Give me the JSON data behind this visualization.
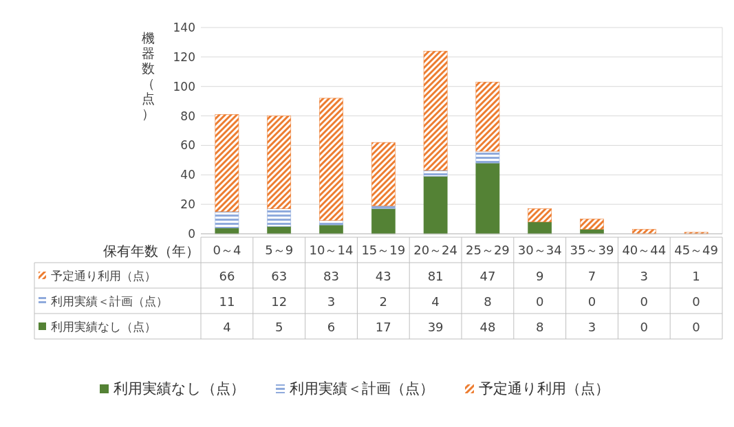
{
  "chart_data": {
    "type": "bar",
    "stacked": true,
    "ylabel": "機器数（点）",
    "xlabel": "保有年数（年）",
    "categories": [
      "0～4",
      "5～9",
      "10～14",
      "15～19",
      "20～24",
      "25～29",
      "30～34",
      "35～39",
      "40～44",
      "45～49"
    ],
    "series": [
      {
        "name": "利用実績なし（点）",
        "color": "#548235",
        "values": [
          4,
          5,
          6,
          17,
          39,
          48,
          8,
          3,
          0,
          0
        ]
      },
      {
        "name": "利用実績＜計画（点）",
        "color": "#8faadc",
        "values": [
          11,
          12,
          3,
          2,
          4,
          8,
          0,
          0,
          0,
          0
        ]
      },
      {
        "name": "予定通り利用（点）",
        "color": "#ed7d31",
        "values": [
          66,
          63,
          83,
          43,
          81,
          47,
          9,
          7,
          3,
          1
        ]
      }
    ],
    "ylim": [
      0,
      140
    ],
    "yticks": [
      0,
      20,
      40,
      60,
      80,
      100,
      120,
      140
    ],
    "grid": "y",
    "legend": "bottom",
    "data_labels": true
  }
}
